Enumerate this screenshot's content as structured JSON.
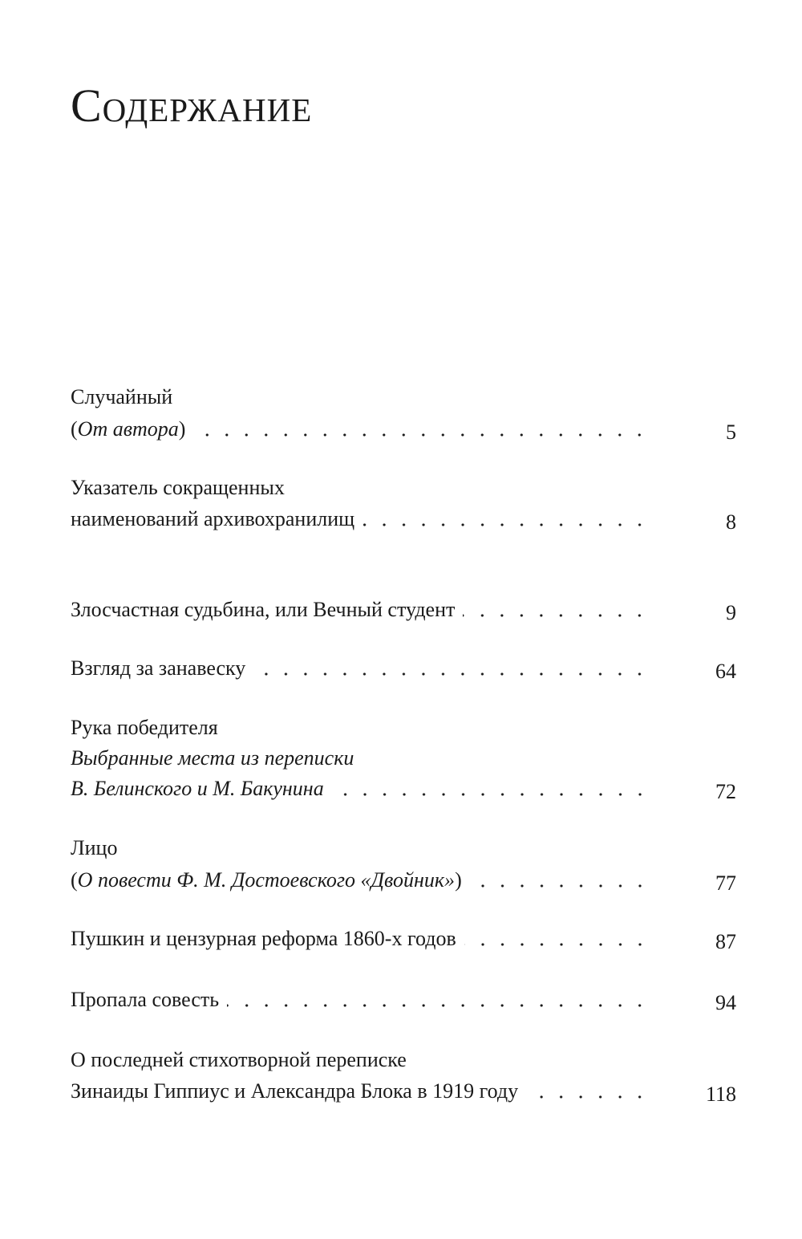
{
  "title": "Содержание",
  "entries": [
    {
      "lines": [
        {
          "pre": "Случайный",
          "it": "",
          "post": ""
        },
        {
          "pre": "(",
          "it": "От автора",
          "post": ")"
        }
      ],
      "page": "5"
    },
    {
      "lines": [
        {
          "pre": "Указатель сокращенных",
          "it": "",
          "post": ""
        },
        {
          "pre": "наименований архивохранилищ",
          "it": "",
          "post": ""
        }
      ],
      "page": "8"
    },
    {
      "lines": [
        {
          "pre": "Злосчастная судьбина, или Вечный студент",
          "it": "",
          "post": ""
        }
      ],
      "page": "9"
    },
    {
      "lines": [
        {
          "pre": "Взгляд за занавеску",
          "it": "",
          "post": ""
        }
      ],
      "page": "64"
    },
    {
      "lines": [
        {
          "pre": "Рука победителя",
          "it": "",
          "post": ""
        },
        {
          "pre": "",
          "it": "Выбранные места из переписки",
          "post": ""
        },
        {
          "pre": "",
          "it": "В. Белинского и М. Бакунина",
          "post": ""
        }
      ],
      "page": "72"
    },
    {
      "lines": [
        {
          "pre": "Лицо",
          "it": "",
          "post": ""
        },
        {
          "pre": "(",
          "it": "О повести Ф. М. Достоевского «Двойник»",
          "post": ")"
        }
      ],
      "page": "77"
    },
    {
      "lines": [
        {
          "pre": "Пушкин и цензурная реформа 1860-х годов",
          "it": "",
          "post": ""
        }
      ],
      "page": "87"
    },
    {
      "lines": [
        {
          "pre": "Пропала совесть",
          "it": "",
          "post": ""
        }
      ],
      "page": "94"
    },
    {
      "lines": [
        {
          "pre": "О последней стихотворной переписке",
          "it": "",
          "post": ""
        },
        {
          "pre": "Зинаиды Гиппиус и Александра Блока в 1919 году",
          "it": "",
          "post": ""
        }
      ],
      "page": "118"
    }
  ]
}
